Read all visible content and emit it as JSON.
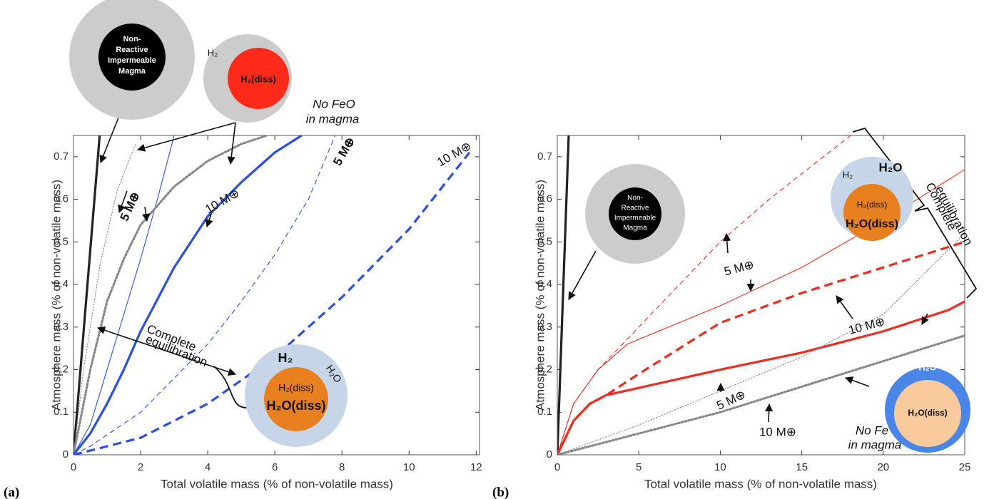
{
  "chart_data": [
    {
      "type": "line",
      "panel_label": "(a)",
      "x_label": "Total volatile mass (% of non-volatile mass)",
      "y_label": "Atmosphere mass (% of non-volatile mass)",
      "xlim": [
        0,
        12.1
      ],
      "xticks": [
        0,
        2,
        4,
        6,
        8,
        10,
        12
      ],
      "ylim": [
        0,
        0.75
      ],
      "yticks": [
        0,
        0.1,
        0.2,
        0.3,
        0.4,
        0.5,
        0.6,
        0.7
      ],
      "series": [
        {
          "color": "#222222",
          "line": "solid",
          "weight": "thick",
          "x": [
            0,
            0.78
          ],
          "values": [
            0,
            0.75
          ]
        },
        {
          "color": "#888888",
          "line": "dotted",
          "weight": "thin",
          "x": [
            0,
            0.3,
            0.8,
            1.3,
            1.85
          ],
          "values": [
            0,
            0.2,
            0.45,
            0.62,
            0.73
          ]
        },
        {
          "color": "#2b4ee6",
          "line": "solid",
          "weight": "thin",
          "x": [
            0,
            0.5,
            1,
            1.5,
            2,
            2.5,
            3.0
          ],
          "values": [
            0,
            0.07,
            0.2,
            0.33,
            0.46,
            0.6,
            0.75
          ]
        },
        {
          "color": "#888888",
          "line": "dotted",
          "weight": "thick",
          "x": [
            0,
            0.5,
            1,
            1.5,
            2,
            3,
            4,
            5,
            5.77
          ],
          "values": [
            0,
            0.2,
            0.36,
            0.46,
            0.54,
            0.63,
            0.69,
            0.73,
            0.75
          ]
        },
        {
          "color": "#2b4ee6",
          "line": "solid",
          "weight": "thick",
          "x": [
            0,
            0.5,
            1,
            1.5,
            2,
            3,
            4,
            5,
            6,
            6.8
          ],
          "values": [
            0,
            0.05,
            0.12,
            0.2,
            0.29,
            0.44,
            0.56,
            0.64,
            0.71,
            0.75
          ]
        },
        {
          "color": "#2b4ee6",
          "line": "dashed",
          "weight": "thin",
          "x": [
            0,
            0.5,
            2,
            3,
            4,
            5,
            6,
            7,
            7.8
          ],
          "values": [
            0,
            0.02,
            0.1,
            0.18,
            0.26,
            0.36,
            0.47,
            0.6,
            0.75
          ]
        },
        {
          "color": "#2b4ee6",
          "line": "dashed",
          "weight": "thick",
          "x": [
            0,
            2,
            4,
            6,
            8,
            10,
            11.8
          ],
          "values": [
            0,
            0.04,
            0.12,
            0.23,
            0.37,
            0.53,
            0.71
          ]
        }
      ],
      "annotations": [
        "5 M⊕",
        "10 M⊕",
        "5 M⊕",
        "10 M⊕",
        "Complete",
        "equilibration",
        "No FeO",
        "in magma"
      ],
      "insets": [
        {
          "texts": [
            "Non-",
            "Reactive",
            "Impermeable",
            "Magma"
          ]
        },
        {
          "texts": [
            "H₂",
            "H₂(diss)"
          ]
        },
        {
          "texts": [
            "H₂",
            "H₂O",
            "H₂(diss)",
            "H₂O(diss)"
          ]
        }
      ]
    },
    {
      "type": "line",
      "panel_label": "(b)",
      "x_label": "Total volatile mass (% of non-volatile mass)",
      "y_label": "Atmosphere mass (% of non-volatile mass)",
      "xlim": [
        0,
        25
      ],
      "xticks": [
        0,
        5,
        10,
        15,
        20,
        25
      ],
      "ylim": [
        0,
        0.75
      ],
      "yticks": [
        0,
        0.1,
        0.2,
        0.3,
        0.4,
        0.5,
        0.6,
        0.7
      ],
      "series": [
        {
          "color": "#222222",
          "line": "solid",
          "weight": "thick",
          "x": [
            0,
            0.7
          ],
          "values": [
            0,
            0.75
          ]
        },
        {
          "color": "#f02b1f",
          "line": "dashed",
          "weight": "thin",
          "x": [
            0,
            1,
            2.5,
            5,
            8,
            10,
            13,
            16,
            18
          ],
          "values": [
            0,
            0.12,
            0.2,
            0.3,
            0.42,
            0.5,
            0.6,
            0.69,
            0.75
          ]
        },
        {
          "color": "#f02b1f",
          "line": "solid",
          "weight": "thin",
          "x": [
            0,
            1,
            2.5,
            4.3,
            10,
            15,
            20,
            25
          ],
          "values": [
            0,
            0.12,
            0.2,
            0.26,
            0.35,
            0.44,
            0.55,
            0.67
          ]
        },
        {
          "color": "#f02b1f",
          "line": "dashed",
          "weight": "thick",
          "x": [
            0,
            1,
            2,
            3,
            5,
            10,
            15,
            20,
            25
          ],
          "values": [
            0,
            0.08,
            0.12,
            0.14,
            0.19,
            0.31,
            0.38,
            0.44,
            0.5
          ]
        },
        {
          "color": "#f02b1f",
          "line": "solid",
          "weight": "thick",
          "x": [
            0,
            1,
            2,
            3,
            10,
            15,
            20,
            24,
            25
          ],
          "values": [
            0,
            0.08,
            0.12,
            0.14,
            0.2,
            0.24,
            0.29,
            0.34,
            0.36
          ]
        },
        {
          "color": "#888888",
          "line": "dotted",
          "weight": "thin",
          "x": [
            0,
            5,
            10,
            15,
            20,
            25
          ],
          "values": [
            0,
            0.07,
            0.15,
            0.23,
            0.33,
            0.52
          ]
        },
        {
          "color": "#888888",
          "line": "dotted",
          "weight": "thick",
          "x": [
            0,
            5,
            10,
            15,
            20,
            25
          ],
          "values": [
            0,
            0.05,
            0.1,
            0.16,
            0.22,
            0.28
          ]
        }
      ],
      "annotations": [
        "5 M⊕",
        "10 M⊕",
        "5 M⊕",
        "10 M⊕",
        "Complete",
        "equilibration",
        "No Fe",
        "in magma"
      ],
      "insets": [
        {
          "texts": [
            "Non-",
            "Reactive",
            "Impermeable",
            "Magma"
          ]
        },
        {
          "texts": [
            "H₂",
            "H₂O",
            "H₂(diss)",
            "H₂O(diss)"
          ]
        },
        {
          "texts": [
            "H₂O",
            "H₂O(diss)"
          ]
        }
      ]
    }
  ]
}
